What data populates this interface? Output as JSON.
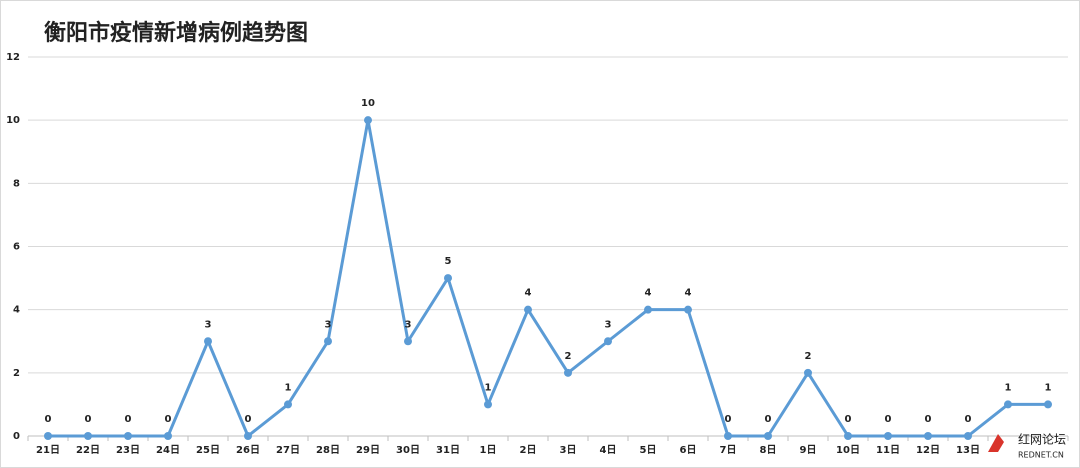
{
  "chart_data": {
    "type": "line",
    "title": "衡阳市疫情新增病例趋势图",
    "categories": [
      "21日",
      "22日",
      "23日",
      "24日",
      "25日",
      "26日",
      "27日",
      "28日",
      "29日",
      "30日",
      "31日",
      "1日",
      "2日",
      "3日",
      "4日",
      "5日",
      "6日",
      "7日",
      "8日",
      "9日",
      "10日",
      "11日",
      "12日",
      "13日",
      null,
      null
    ],
    "values": [
      0,
      0,
      0,
      0,
      3,
      0,
      1,
      3,
      10,
      3,
      5,
      1,
      4,
      2,
      3,
      4,
      4,
      0,
      0,
      2,
      0,
      0,
      0,
      0,
      1,
      1
    ],
    "color": "#5b9bd5",
    "ylim": [
      0,
      12
    ],
    "yticks": [
      0,
      2,
      4,
      6,
      8,
      10,
      12
    ],
    "grid": true
  },
  "watermark": {
    "title": "红网论坛",
    "subtitle": "REDNET.CN"
  }
}
